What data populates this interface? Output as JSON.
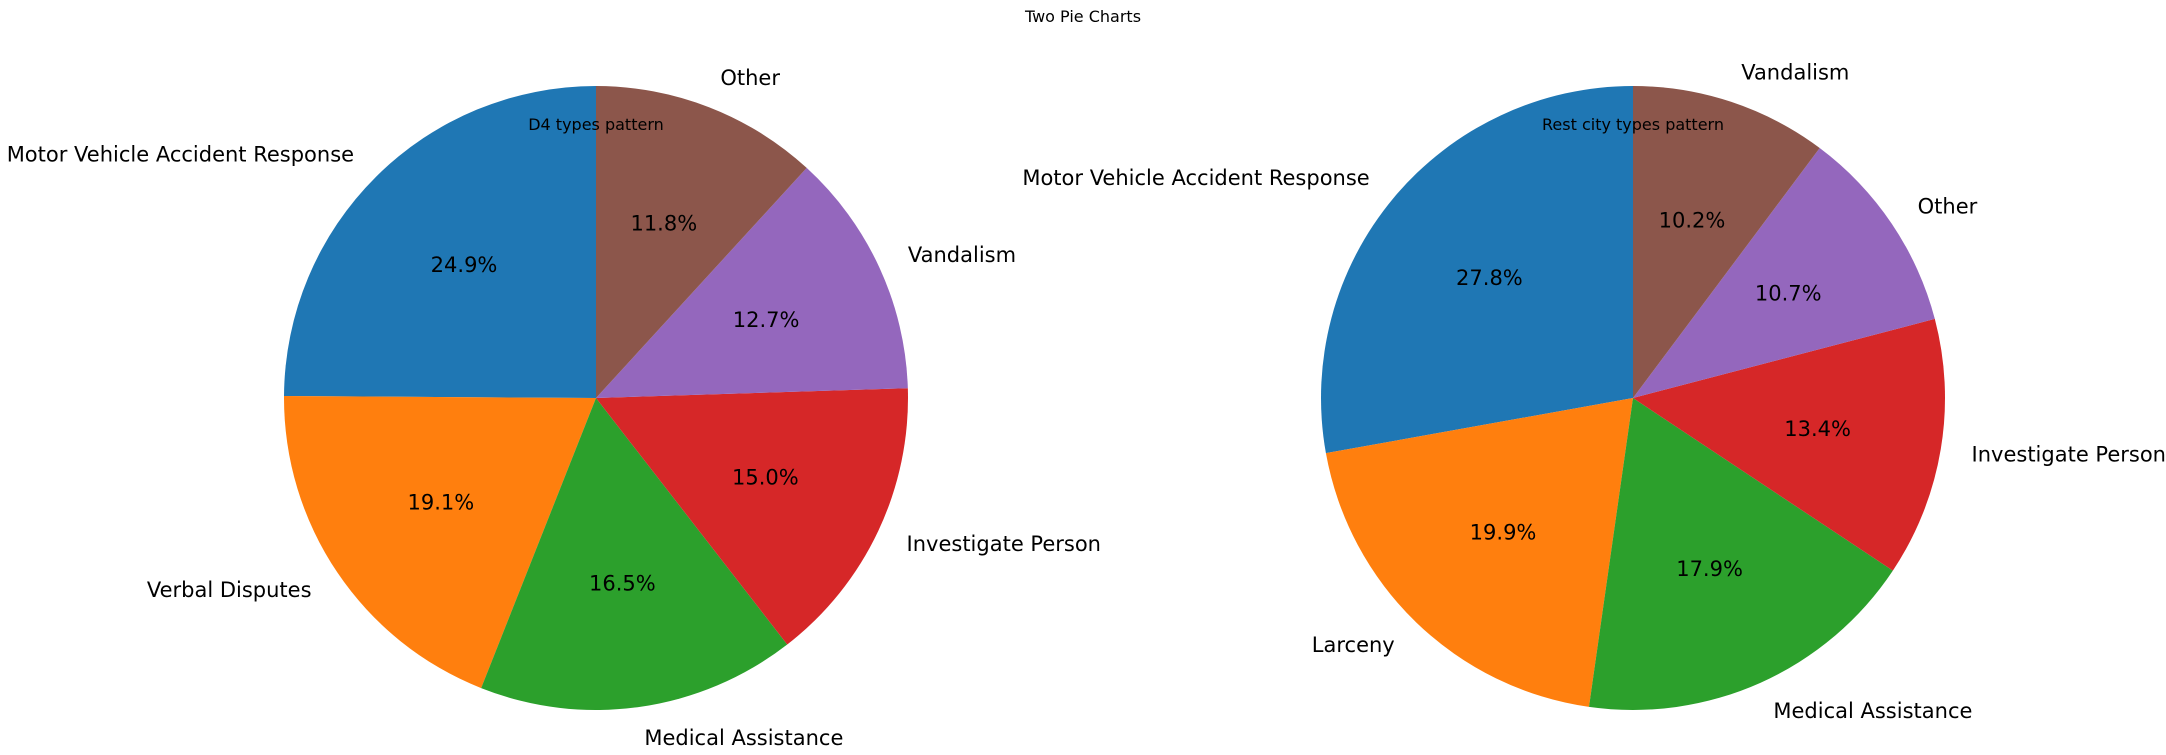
{
  "figure_title": "Two Pie Charts",
  "chart_data": [
    {
      "type": "pie",
      "title": "D4 types pattern",
      "start_angle_deg": 90,
      "direction": "counterclockwise",
      "slices": [
        {
          "label": "Motor Vehicle Accident Response",
          "value": 24.9,
          "color": "#1f77b4"
        },
        {
          "label": "Verbal Disputes",
          "value": 19.1,
          "color": "#ff7f0e"
        },
        {
          "label": "Medical Assistance",
          "value": 16.5,
          "color": "#2ca02c"
        },
        {
          "label": "Investigate Person",
          "value": 15.0,
          "color": "#d62728"
        },
        {
          "label": "Vandalism",
          "value": 12.7,
          "color": "#9467bd"
        },
        {
          "label": "Other",
          "value": 11.8,
          "color": "#8c564b"
        }
      ]
    },
    {
      "type": "pie",
      "title": "Rest city types pattern",
      "start_angle_deg": 90,
      "direction": "counterclockwise",
      "slices": [
        {
          "label": "Motor Vehicle Accident Response",
          "value": 27.8,
          "color": "#1f77b4"
        },
        {
          "label": "Larceny",
          "value": 19.9,
          "color": "#ff7f0e"
        },
        {
          "label": "Medical Assistance",
          "value": 17.9,
          "color": "#2ca02c"
        },
        {
          "label": "Investigate Person",
          "value": 13.4,
          "color": "#d62728"
        },
        {
          "label": "Other",
          "value": 10.7,
          "color": "#9467bd"
        },
        {
          "label": "Vandalism",
          "value": 10.2,
          "color": "#8c564b"
        }
      ]
    }
  ]
}
